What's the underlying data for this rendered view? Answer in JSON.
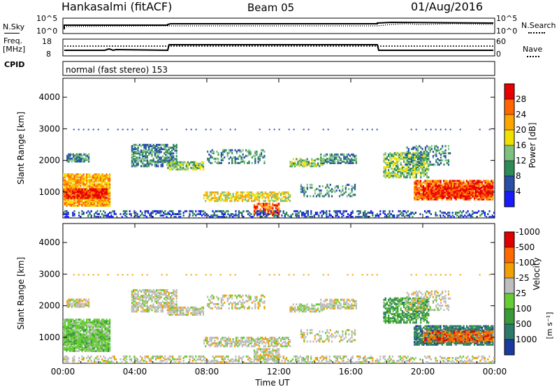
{
  "header": {
    "station": "Hankasalmi (fitACF)",
    "beam": "Beam 05",
    "date": "01/Aug/2016"
  },
  "top_panels": {
    "nsky_label": "N.Sky",
    "nsky_ticks": [
      "10^5",
      "10^0"
    ],
    "nsearch_label": "N.Search",
    "nsearch_ticks": [
      "10^5",
      "10^0"
    ],
    "freq_label_1": "Freq.",
    "freq_label_2": "[MHz]",
    "freq_ticks": [
      "18",
      "8"
    ],
    "nave_label": "Nave",
    "nave_ticks": [
      "60",
      "0"
    ],
    "cpid_label": "CPID",
    "cpid_text": "normal (fast stereo) 153"
  },
  "chart_data": [
    {
      "type": "heatmap",
      "title": "",
      "ylabel": "Slant Range [km]",
      "xlabel": "",
      "ylim": [
        180,
        4600
      ],
      "yticks": [
        "1000",
        "2000",
        "3000",
        "4000"
      ],
      "colorbar": {
        "label": "Power [dB]",
        "ticks": [
          "4",
          "8",
          "12",
          "16",
          "20",
          "24",
          "28"
        ],
        "colors": [
          "#1a1aff",
          "#2a4ea8",
          "#2e8b57",
          "#7fc27f",
          "#f0e000",
          "#ffa500",
          "#ff6600",
          "#e80000"
        ]
      }
    },
    {
      "type": "heatmap",
      "title": "",
      "ylabel": "Slant Range [km]",
      "xlabel": "Time UT",
      "ylim": [
        180,
        4600
      ],
      "xlim": [
        "00:00",
        "24:00"
      ],
      "xticks": [
        "00:00",
        "04:00",
        "08:00",
        "12:00",
        "16:00",
        "20:00",
        "00:00"
      ],
      "yticks": [
        "1000",
        "2000",
        "3000",
        "4000"
      ],
      "colorbar": {
        "label": "Velocity",
        "unit": "[m s⁻¹]",
        "ticks": [
          "1000",
          "500",
          "100",
          "25",
          "-25",
          "-100",
          "-500",
          "-1000"
        ],
        "colors": [
          "#1a3aa0",
          "#2c7a6a",
          "#3a9a3a",
          "#66cc33",
          "#bebebe",
          "#f0a000",
          "#ff6a00",
          "#e00000"
        ]
      }
    }
  ]
}
